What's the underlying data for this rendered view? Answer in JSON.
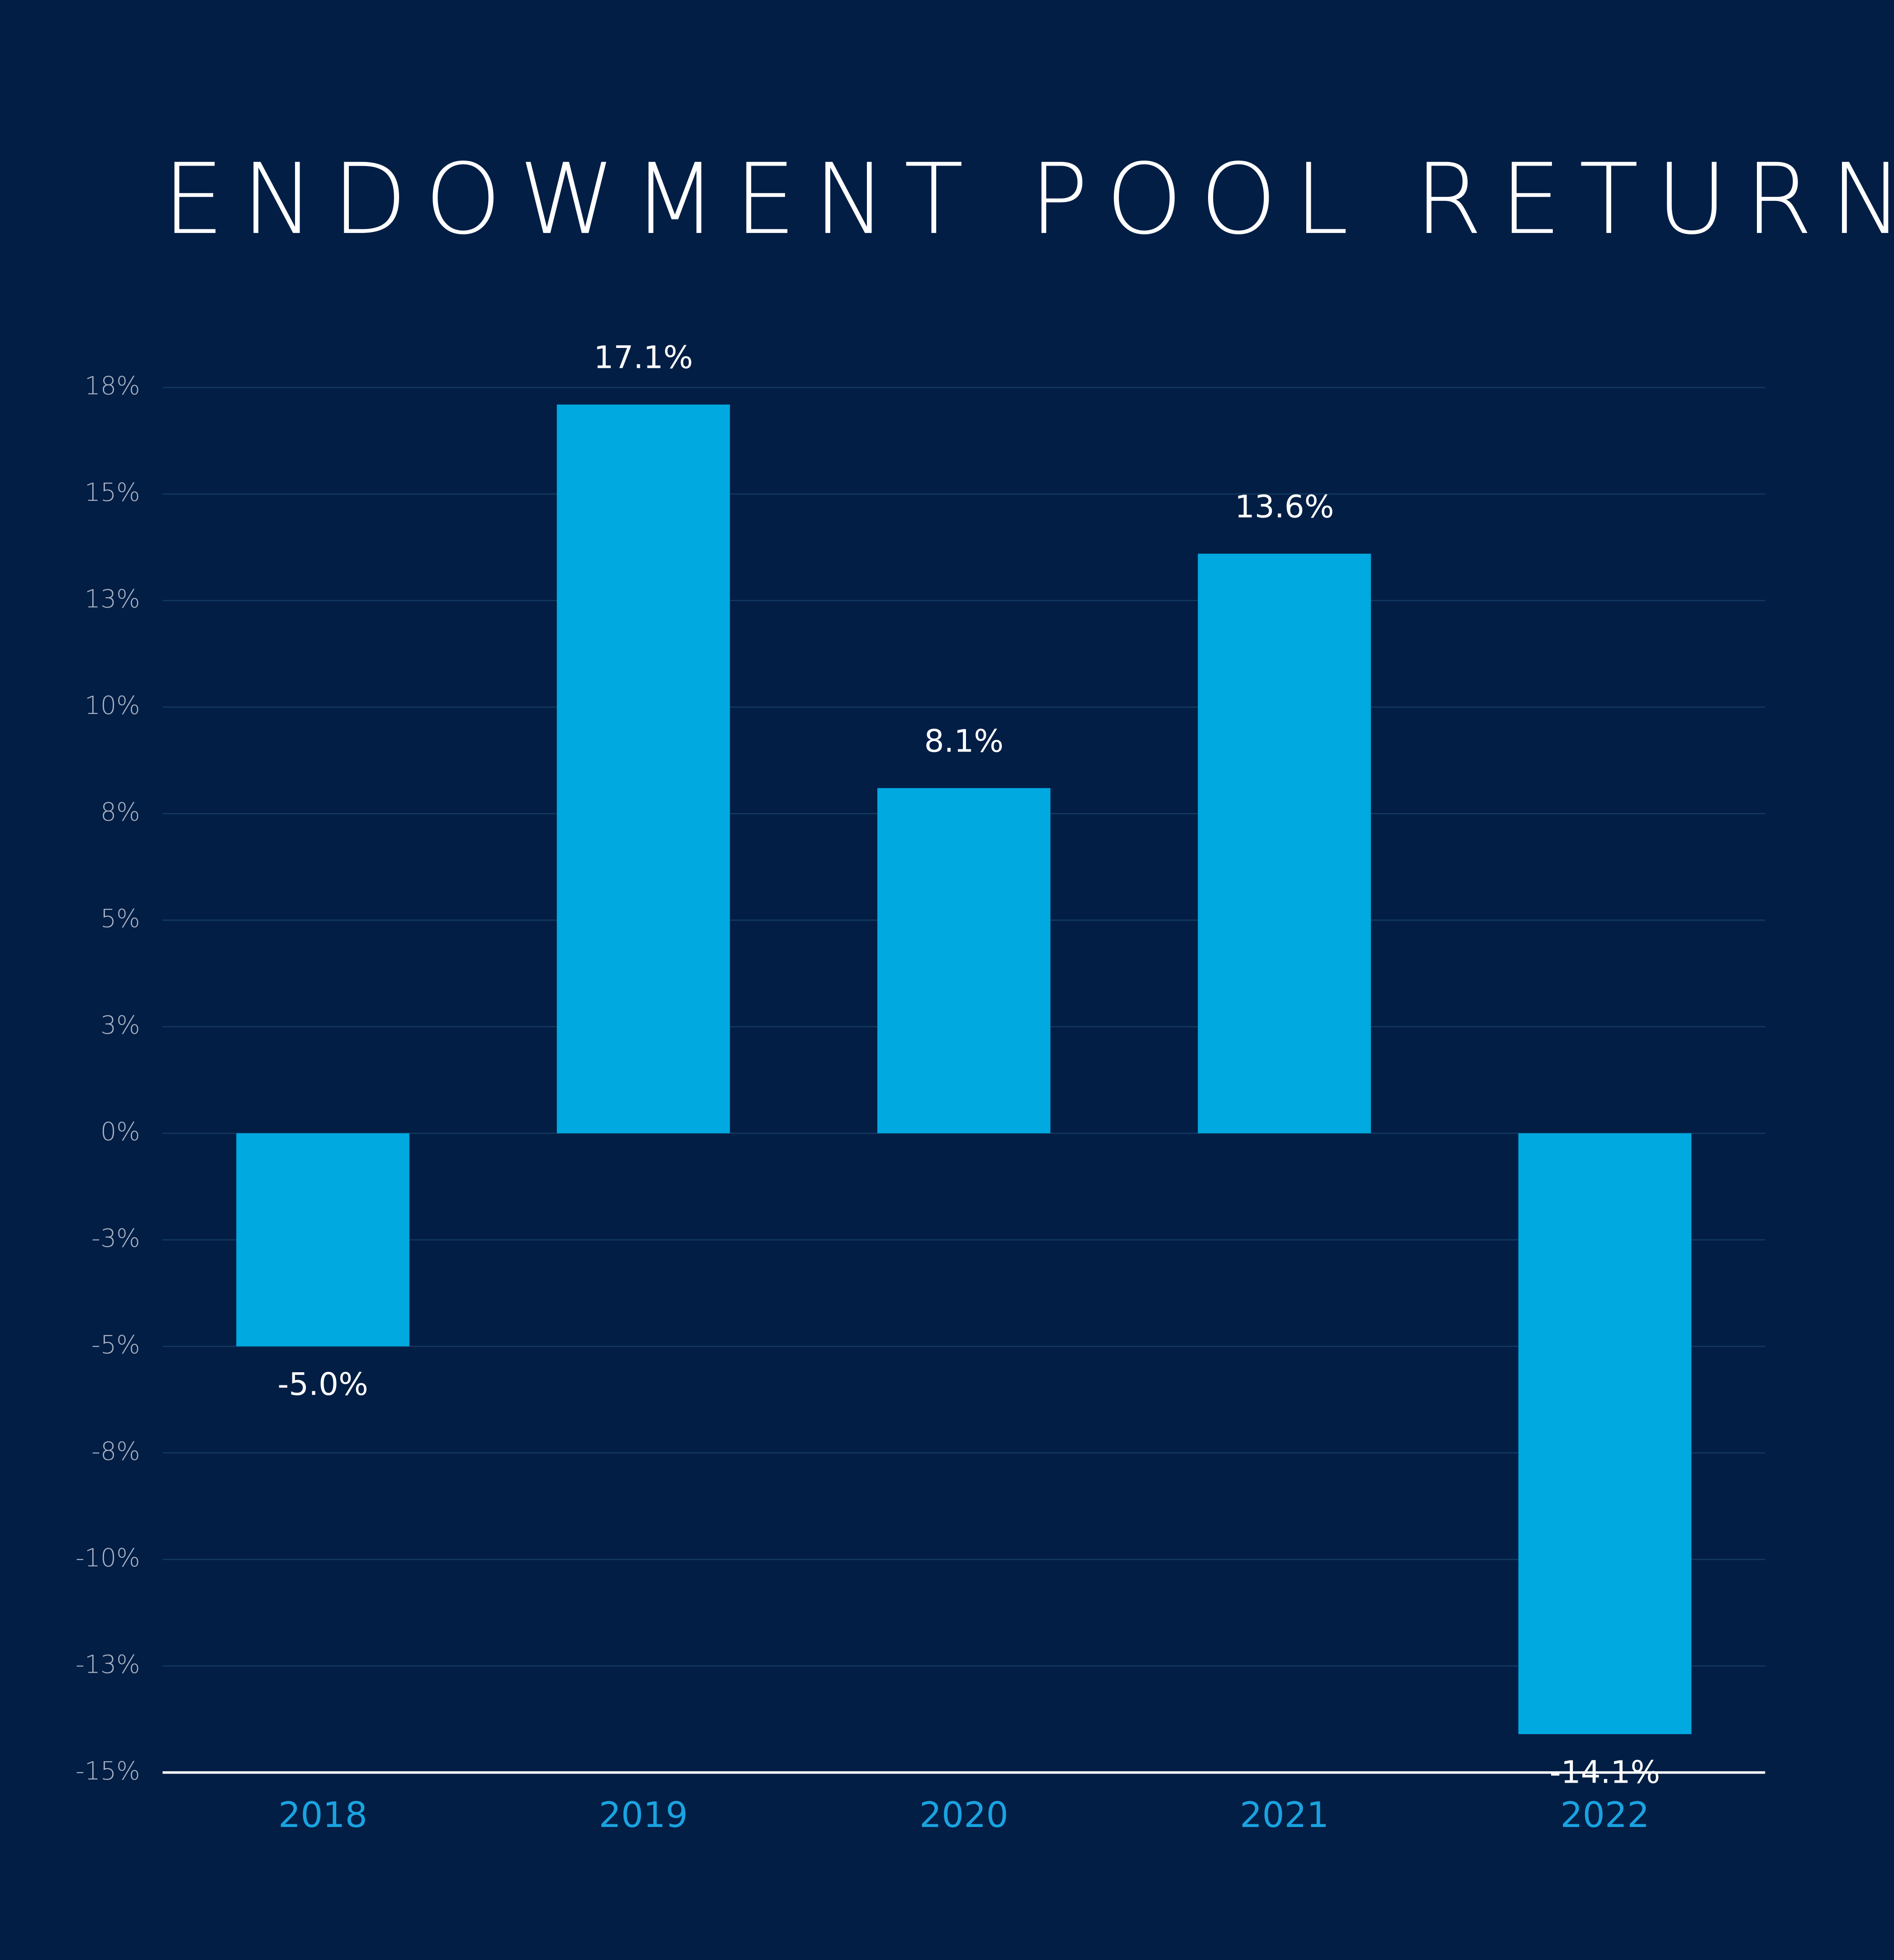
{
  "chart_data": {
    "type": "bar",
    "title": "ENDOWMENT POOL RETURNS",
    "categories": [
      "2018",
      "2019",
      "2020",
      "2021",
      "2022"
    ],
    "values": [
      -5.0,
      17.1,
      8.1,
      13.6,
      -14.1
    ],
    "value_labels": [
      "-5.0%",
      "17.1%",
      "8.1%",
      "13.6%",
      "-14.1%"
    ],
    "color": "#00a9e0",
    "ylim": [
      -15,
      17.5
    ],
    "yticks": [
      {
        "value": 17.5,
        "label": "18%"
      },
      {
        "value": 15,
        "label": "15%"
      },
      {
        "value": 12.5,
        "label": "13%"
      },
      {
        "value": 10,
        "label": "10%"
      },
      {
        "value": 7.5,
        "label": "8%"
      },
      {
        "value": 5,
        "label": "5%"
      },
      {
        "value": 2.5,
        "label": "3%"
      },
      {
        "value": 0,
        "label": "0%"
      },
      {
        "value": -2.5,
        "label": "-3%"
      },
      {
        "value": -5,
        "label": "-5%"
      },
      {
        "value": -7.5,
        "label": "-8%"
      },
      {
        "value": -10,
        "label": "-10%"
      },
      {
        "value": -12.5,
        "label": "-13%"
      },
      {
        "value": -15,
        "label": "-15%"
      }
    ],
    "grid": true
  }
}
